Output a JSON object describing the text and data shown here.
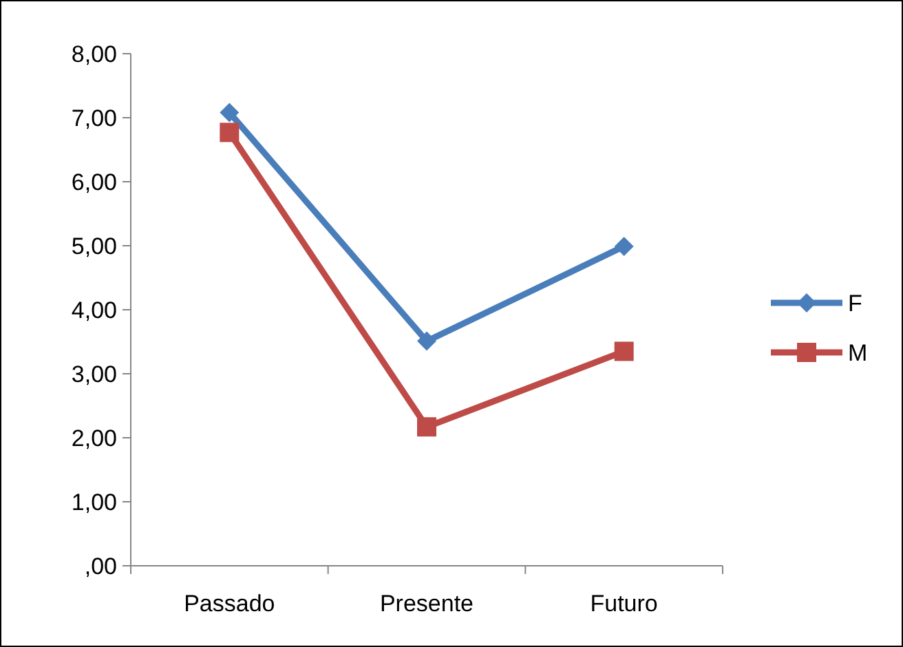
{
  "chart_data": {
    "type": "line",
    "categories": [
      "Passado",
      "Presente",
      "Futuro"
    ],
    "series": [
      {
        "name": "F",
        "color": "#4a7ebb",
        "marker": "diamond",
        "values": [
          7.08,
          3.51,
          4.99
        ]
      },
      {
        "name": "M",
        "color": "#be4b48",
        "marker": "square",
        "values": [
          6.77,
          2.17,
          3.35
        ]
      }
    ],
    "ylim": [
      0,
      8
    ],
    "yticks": [
      {
        "value": 0,
        "label": ",00"
      },
      {
        "value": 1,
        "label": "1,00"
      },
      {
        "value": 2,
        "label": "2,00"
      },
      {
        "value": 3,
        "label": "3,00"
      },
      {
        "value": 4,
        "label": "4,00"
      },
      {
        "value": 5,
        "label": "5,00"
      },
      {
        "value": 6,
        "label": "6,00"
      },
      {
        "value": 7,
        "label": "7,00"
      },
      {
        "value": 8,
        "label": "8,00"
      }
    ],
    "grid": false,
    "legend": "right",
    "line_style": "solid"
  }
}
